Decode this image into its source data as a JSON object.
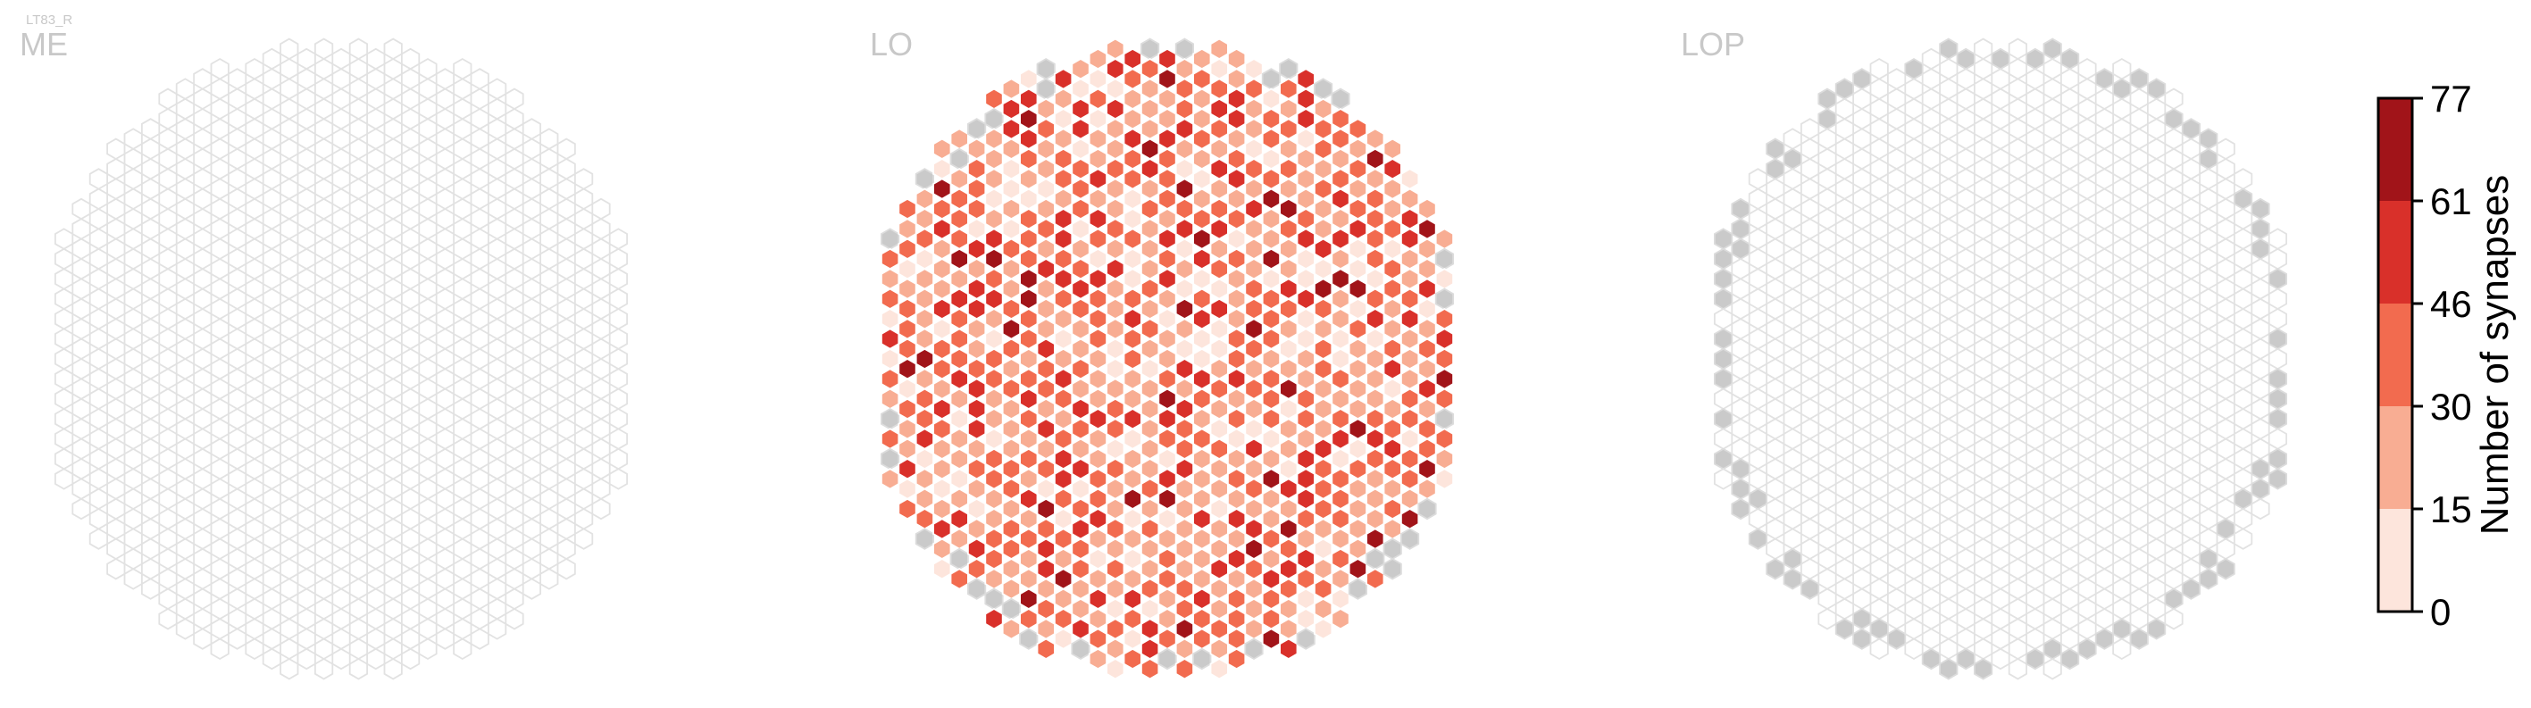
{
  "figure_label": "LT83_R",
  "colors": {
    "empty_stroke": "#e2e2e2",
    "gray_fill": "#cacaca",
    "gray_stroke": "#dcdcdc",
    "cell_stroke": "#ffffff",
    "bins": [
      "#fde5dc",
      "#f8ad93",
      "#f26b4f",
      "#d9302a",
      "#a11419"
    ]
  },
  "chart_data": [
    {
      "type": "heatmap",
      "subtype": "hexagonal-grid",
      "title": "ME",
      "cells": "all columns empty (no synapses), drawn as light outlines"
    },
    {
      "type": "heatmap",
      "subtype": "hexagonal-grid",
      "title": "LO",
      "cells": "dense field of filled columns; values span 0–77 across all five color bins; a few gray (no-data) columns along the rim",
      "bin_distribution": [
        0.16,
        0.33,
        0.31,
        0.15,
        0.05
      ]
    },
    {
      "type": "heatmap",
      "subtype": "hexagonal-grid",
      "title": "LOP",
      "cells": "interior columns empty (light outlines); ring of gray (no-data) columns around the rim"
    }
  ],
  "colorbar": {
    "label": "Number of synapses",
    "ticks": [
      "0",
      "15",
      "30",
      "46",
      "61",
      "77"
    ],
    "range": [
      0,
      77
    ]
  }
}
